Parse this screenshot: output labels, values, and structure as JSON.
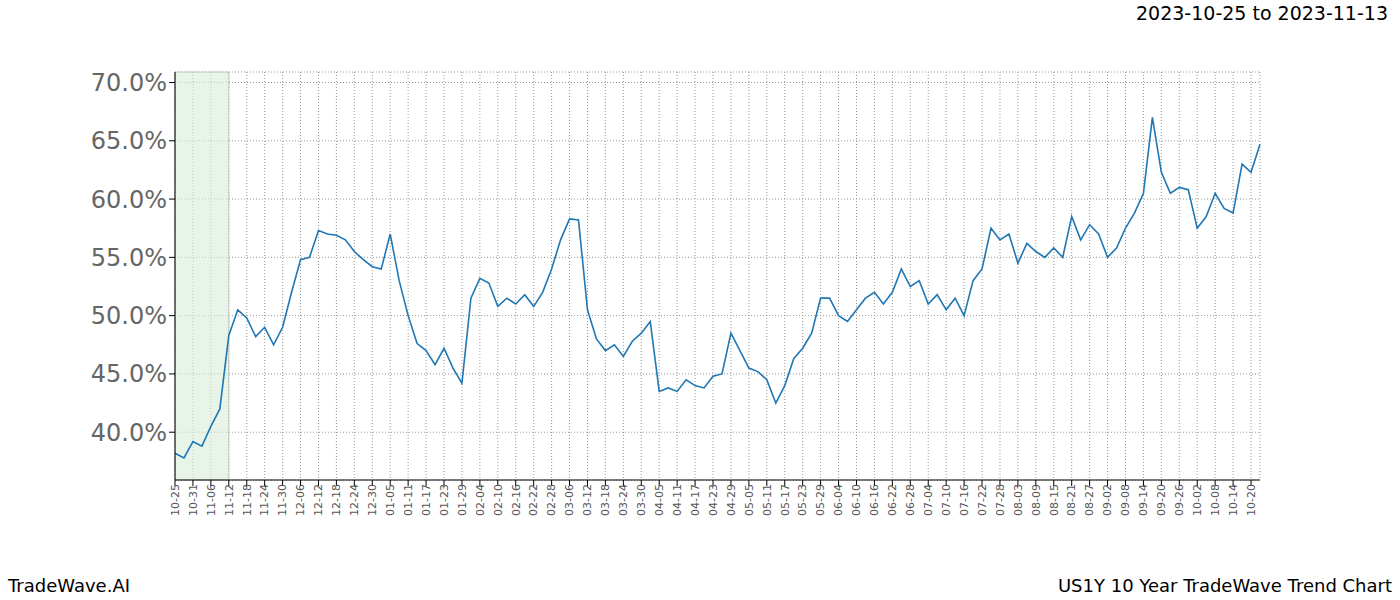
{
  "chart_data": {
    "type": "line",
    "title": "US1Y 10 Year TradeWave Trend Chart",
    "subtitle": "2023-10-25 to 2023-11-13",
    "annotations": [
      "TradeWave.AI"
    ],
    "categories": [
      "10-25",
      null,
      "10-31",
      null,
      "11-06",
      null,
      "11-12",
      null,
      "11-18",
      null,
      "11-24",
      null,
      "11-30",
      null,
      "12-06",
      null,
      "12-12",
      null,
      "12-18",
      null,
      "12-24",
      null,
      "12-30",
      null,
      "01-05",
      null,
      "01-11",
      null,
      "01-17",
      null,
      "01-23",
      null,
      "01-29",
      null,
      "02-04",
      null,
      "02-10",
      null,
      "02-16",
      null,
      "02-22",
      null,
      "02-28",
      null,
      "03-06",
      null,
      "03-12",
      null,
      "03-18",
      null,
      "03-24",
      null,
      "03-30",
      null,
      "04-05",
      null,
      "04-11",
      null,
      "04-17",
      null,
      "04-23",
      null,
      "04-29",
      null,
      "05-05",
      null,
      "05-11",
      null,
      "05-17",
      null,
      "05-23",
      null,
      "05-29",
      null,
      "06-04",
      null,
      "06-10",
      null,
      "06-16",
      null,
      "06-22",
      null,
      "06-28",
      null,
      "07-04",
      null,
      "07-10",
      null,
      "07-16",
      null,
      "07-22",
      null,
      "07-28",
      null,
      "08-03",
      null,
      "08-09",
      null,
      "08-15",
      null,
      "08-21",
      null,
      "08-27",
      null,
      "09-02",
      null,
      "09-08",
      null,
      "09-14",
      null,
      "09-20",
      null,
      "09-26",
      null,
      "10-02",
      null,
      "10-08",
      null,
      "10-14",
      null,
      "10-20",
      null
    ],
    "values": [
      38.2,
      37.8,
      39.2,
      38.8,
      40.5,
      42.0,
      48.3,
      50.5,
      49.8,
      48.2,
      49.0,
      47.5,
      49.0,
      52.0,
      54.8,
      55.0,
      57.3,
      57.0,
      56.9,
      56.5,
      55.5,
      54.8,
      54.2,
      54.0,
      57.0,
      53.0,
      50.0,
      47.6,
      47.0,
      45.8,
      47.2,
      45.5,
      44.2,
      51.5,
      53.2,
      52.8,
      50.8,
      51.5,
      51.0,
      51.8,
      50.8,
      52.0,
      54.0,
      56.5,
      58.3,
      58.2,
      50.5,
      48.0,
      47.0,
      47.5,
      46.5,
      47.8,
      48.5,
      49.5,
      43.5,
      43.8,
      43.5,
      44.5,
      44.0,
      43.8,
      44.8,
      45.0,
      48.5,
      47.0,
      45.5,
      45.2,
      44.5,
      42.5,
      44.0,
      46.3,
      47.2,
      48.5,
      51.5,
      51.5,
      50.0,
      49.5,
      50.5,
      51.5,
      52.0,
      51.0,
      52.0,
      54.0,
      52.5,
      53.0,
      51.0,
      51.8,
      50.5,
      51.5,
      50.0,
      53.0,
      54.0,
      57.5,
      56.5,
      57.0,
      54.5,
      56.2,
      55.5,
      55.0,
      55.8,
      55.0,
      58.5,
      56.5,
      57.8,
      57.0,
      55.0,
      55.8,
      57.5,
      58.8,
      60.5,
      67.0,
      62.3,
      60.5,
      61.0,
      60.8,
      57.5,
      58.5,
      60.5,
      59.2,
      58.8,
      63.0,
      62.3,
      64.7
    ],
    "color": "#1f77b4",
    "shaded_range": [
      "10-25",
      "11-12"
    ],
    "ylim": [
      35.9,
      70.9
    ],
    "yticks": [
      {
        "value": 40,
        "label": "40.0%"
      },
      {
        "value": 45,
        "label": "45.0%"
      },
      {
        "value": 50,
        "label": "50.0%"
      },
      {
        "value": 55,
        "label": "55.0%"
      },
      {
        "value": 60,
        "label": "60.0%"
      },
      {
        "value": 65,
        "label": "65.0%"
      },
      {
        "value": 70,
        "label": "70.0%"
      }
    ],
    "grid": true
  }
}
